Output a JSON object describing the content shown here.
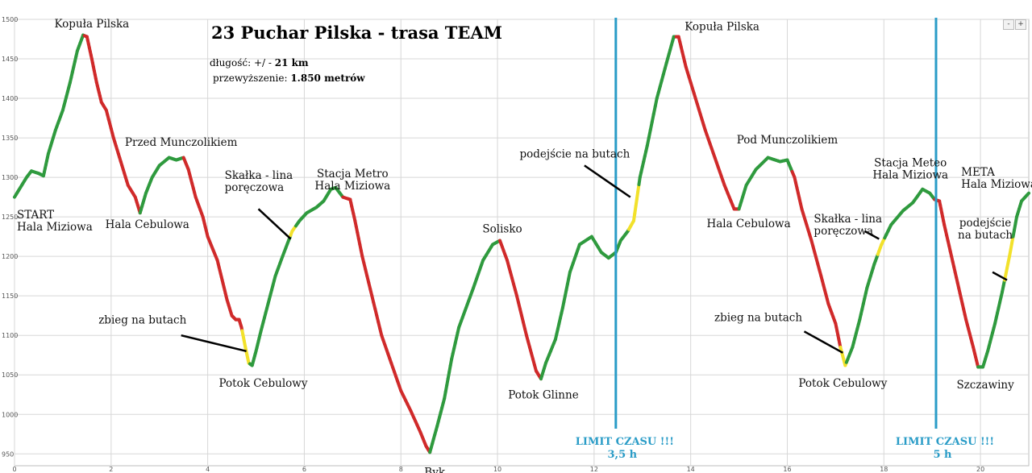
{
  "chart_data": {
    "type": "line",
    "title": "23 Puchar Pilska - trasa TEAM",
    "info": {
      "length_label": "długość: +/ - ",
      "length_value": "21 km",
      "elevation_label": "przewyższenie: ",
      "elevation_value": "1.850 metrów"
    },
    "xlim": [
      0,
      21
    ],
    "ylim": [
      935,
      1500
    ],
    "xticks": [
      0,
      2,
      4,
      6,
      8,
      10,
      12,
      14,
      16,
      18,
      20
    ],
    "yticks": [
      950,
      1000,
      1050,
      1100,
      1150,
      1200,
      1250,
      1300,
      1350,
      1400,
      1450,
      1500
    ],
    "grid": true,
    "colors": {
      "uphill": "#2f9a3e",
      "downhill": "#d02a2a",
      "on_foot": "#f2e12b",
      "limit_line": "#2a9cc7",
      "pointer": "#000000"
    },
    "profile": [
      [
        0.0,
        1275
      ],
      [
        0.1,
        1285
      ],
      [
        0.25,
        1300
      ],
      [
        0.35,
        1308
      ],
      [
        0.5,
        1305
      ],
      [
        0.6,
        1302
      ],
      [
        0.7,
        1330
      ],
      [
        0.85,
        1360
      ],
      [
        1.0,
        1385
      ],
      [
        1.15,
        1420
      ],
      [
        1.3,
        1460
      ],
      [
        1.42,
        1480
      ],
      [
        1.5,
        1478
      ],
      [
        1.6,
        1450
      ],
      [
        1.7,
        1420
      ],
      [
        1.8,
        1395
      ],
      [
        1.9,
        1385
      ],
      [
        2.05,
        1350
      ],
      [
        2.2,
        1320
      ],
      [
        2.35,
        1290
      ],
      [
        2.5,
        1275
      ],
      [
        2.6,
        1255
      ],
      [
        2.72,
        1280
      ],
      [
        2.85,
        1300
      ],
      [
        3.0,
        1315
      ],
      [
        3.2,
        1325
      ],
      [
        3.35,
        1322
      ],
      [
        3.5,
        1325
      ],
      [
        3.6,
        1310
      ],
      [
        3.75,
        1275
      ],
      [
        3.9,
        1250
      ],
      [
        4.0,
        1225
      ],
      [
        4.1,
        1210
      ],
      [
        4.2,
        1195
      ],
      [
        4.3,
        1170
      ],
      [
        4.4,
        1145
      ],
      [
        4.5,
        1125
      ],
      [
        4.58,
        1120
      ],
      [
        4.65,
        1120
      ],
      [
        4.7,
        1110
      ],
      [
        4.78,
        1085
      ],
      [
        4.85,
        1065
      ],
      [
        4.92,
        1062
      ],
      [
        5.0,
        1080
      ],
      [
        5.1,
        1105
      ],
      [
        5.25,
        1140
      ],
      [
        5.4,
        1175
      ],
      [
        5.55,
        1200
      ],
      [
        5.75,
        1232
      ],
      [
        5.9,
        1245
      ],
      [
        6.05,
        1255
      ],
      [
        6.25,
        1262
      ],
      [
        6.4,
        1270
      ],
      [
        6.55,
        1285
      ],
      [
        6.65,
        1287
      ],
      [
        6.8,
        1275
      ],
      [
        6.95,
        1272
      ],
      [
        7.05,
        1245
      ],
      [
        7.2,
        1200
      ],
      [
        7.4,
        1150
      ],
      [
        7.6,
        1100
      ],
      [
        7.8,
        1065
      ],
      [
        8.0,
        1030
      ],
      [
        8.2,
        1005
      ],
      [
        8.4,
        978
      ],
      [
        8.52,
        960
      ],
      [
        8.6,
        952
      ],
      [
        8.75,
        985
      ],
      [
        8.9,
        1020
      ],
      [
        9.05,
        1070
      ],
      [
        9.2,
        1110
      ],
      [
        9.35,
        1135
      ],
      [
        9.5,
        1160
      ],
      [
        9.7,
        1195
      ],
      [
        9.9,
        1215
      ],
      [
        10.05,
        1220
      ],
      [
        10.2,
        1195
      ],
      [
        10.4,
        1150
      ],
      [
        10.6,
        1100
      ],
      [
        10.8,
        1055
      ],
      [
        10.9,
        1045
      ],
      [
        11.0,
        1065
      ],
      [
        11.2,
        1095
      ],
      [
        11.35,
        1135
      ],
      [
        11.5,
        1180
      ],
      [
        11.7,
        1215
      ],
      [
        11.95,
        1225
      ],
      [
        12.15,
        1205
      ],
      [
        12.3,
        1198
      ],
      [
        12.45,
        1205
      ],
      [
        12.55,
        1220
      ],
      [
        12.7,
        1232
      ],
      [
        12.82,
        1245
      ],
      [
        12.95,
        1300
      ],
      [
        13.1,
        1340
      ],
      [
        13.3,
        1400
      ],
      [
        13.5,
        1445
      ],
      [
        13.65,
        1478
      ],
      [
        13.75,
        1478
      ],
      [
        13.9,
        1440
      ],
      [
        14.1,
        1400
      ],
      [
        14.3,
        1360
      ],
      [
        14.5,
        1325
      ],
      [
        14.7,
        1290
      ],
      [
        14.9,
        1260
      ],
      [
        15.0,
        1260
      ],
      [
        15.15,
        1290
      ],
      [
        15.35,
        1310
      ],
      [
        15.6,
        1325
      ],
      [
        15.85,
        1320
      ],
      [
        16.0,
        1322
      ],
      [
        16.15,
        1300
      ],
      [
        16.3,
        1260
      ],
      [
        16.5,
        1220
      ],
      [
        16.7,
        1175
      ],
      [
        16.85,
        1140
      ],
      [
        17.0,
        1115
      ],
      [
        17.1,
        1085
      ],
      [
        17.2,
        1062
      ],
      [
        17.35,
        1085
      ],
      [
        17.5,
        1120
      ],
      [
        17.65,
        1160
      ],
      [
        17.8,
        1190
      ],
      [
        17.95,
        1215
      ],
      [
        18.15,
        1240
      ],
      [
        18.4,
        1258
      ],
      [
        18.6,
        1268
      ],
      [
        18.8,
        1285
      ],
      [
        18.95,
        1280
      ],
      [
        19.05,
        1272
      ],
      [
        19.15,
        1270
      ],
      [
        19.25,
        1240
      ],
      [
        19.4,
        1200
      ],
      [
        19.55,
        1160
      ],
      [
        19.7,
        1120
      ],
      [
        19.85,
        1085
      ],
      [
        19.95,
        1060
      ],
      [
        20.05,
        1060
      ],
      [
        20.15,
        1080
      ],
      [
        20.3,
        1115
      ],
      [
        20.45,
        1155
      ],
      [
        20.6,
        1200
      ],
      [
        20.75,
        1250
      ],
      [
        20.85,
        1270
      ],
      [
        21.0,
        1280
      ]
    ],
    "red_ranges": [
      [
        1.45,
        2.6
      ],
      [
        3.5,
        4.75
      ],
      [
        6.8,
        8.6
      ],
      [
        10.05,
        10.9
      ],
      [
        13.7,
        15.0
      ],
      [
        16.1,
        17.1
      ],
      [
        19.05,
        19.95
      ]
    ],
    "yellow_ranges": [
      [
        4.72,
        4.87
      ],
      [
        5.72,
        5.82
      ],
      [
        12.73,
        12.93
      ],
      [
        17.1,
        17.22
      ],
      [
        17.88,
        18.0
      ],
      [
        20.5,
        20.68
      ]
    ],
    "limit_lines": [
      {
        "x": 12.45,
        "label1": "LIMIT CZASU !!!",
        "label2": "3,5 h"
      },
      {
        "x": 19.08,
        "label1": "LIMIT CZASU !!!",
        "label2": "5 h"
      }
    ],
    "annotations": [
      {
        "name": "label-kopula-1",
        "lines": [
          "Kopuła  Pilska"
        ],
        "x": 1.6,
        "y": 1490,
        "anchor": "middle"
      },
      {
        "name": "label-start",
        "lines": [
          "START",
          "Hala Miziowa"
        ],
        "x": 0.05,
        "y": 1248,
        "anchor": "start"
      },
      {
        "name": "label-hala-cebulowa-1",
        "lines": [
          "Hala Cebulowa"
        ],
        "x": 2.75,
        "y": 1236,
        "anchor": "middle"
      },
      {
        "name": "label-przed-munczolikiem",
        "lines": [
          "Przed Munczolikiem"
        ],
        "x": 3.45,
        "y": 1340,
        "anchor": "middle"
      },
      {
        "name": "label-skalka-1",
        "lines": [
          "Skałka - lina",
          "poręczowa"
        ],
        "x": 4.35,
        "y": 1298,
        "anchor": "start"
      },
      {
        "name": "label-stacja-metro",
        "lines": [
          "Stacja Metro",
          "Hala Miziowa"
        ],
        "x": 7.0,
        "y": 1300,
        "anchor": "middle"
      },
      {
        "name": "label-zbieg-1",
        "lines": [
          "zbieg na butach"
        ],
        "x": 2.65,
        "y": 1115,
        "anchor": "middle"
      },
      {
        "name": "label-potok-cebulowy-1",
        "lines": [
          "Potok Cebulowy"
        ],
        "x": 5.15,
        "y": 1035,
        "anchor": "middle"
      },
      {
        "name": "label-byk",
        "lines": [
          "Byk"
        ],
        "x": 8.7,
        "y": 922,
        "anchor": "middle"
      },
      {
        "name": "label-solisko",
        "lines": [
          "Solisko"
        ],
        "x": 10.1,
        "y": 1230,
        "anchor": "middle"
      },
      {
        "name": "label-potok-glinne",
        "lines": [
          "Potok Glinne"
        ],
        "x": 10.95,
        "y": 1020,
        "anchor": "middle"
      },
      {
        "name": "label-podejscie-1",
        "lines": [
          "podejście na butach"
        ],
        "x": 11.6,
        "y": 1325,
        "anchor": "middle"
      },
      {
        "name": "label-kopula-2",
        "lines": [
          "Kopuła Pilska"
        ],
        "x": 14.65,
        "y": 1486,
        "anchor": "middle"
      },
      {
        "name": "label-pod-munczolikiem",
        "lines": [
          "Pod Munczolikiem"
        ],
        "x": 16.0,
        "y": 1343,
        "anchor": "middle"
      },
      {
        "name": "label-hala-cebulowa-2",
        "lines": [
          "Hala Cebulowa"
        ],
        "x": 15.2,
        "y": 1237,
        "anchor": "middle"
      },
      {
        "name": "label-stacja-meteo",
        "lines": [
          "Stacja Meteo",
          "Hala Miziowa"
        ],
        "x": 18.55,
        "y": 1314,
        "anchor": "middle"
      },
      {
        "name": "label-skalka-2",
        "lines": [
          "Skałka - lina",
          "poręczowa"
        ],
        "x": 16.55,
        "y": 1243,
        "anchor": "start"
      },
      {
        "name": "label-meta",
        "lines": [
          "META",
          "Hala Miziowa"
        ],
        "x": 19.6,
        "y": 1302,
        "anchor": "start"
      },
      {
        "name": "label-podejscie-2",
        "lines": [
          "podejście",
          "na butach"
        ],
        "x": 20.1,
        "y": 1238,
        "anchor": "middle"
      },
      {
        "name": "label-zbieg-2",
        "lines": [
          "zbieg na butach"
        ],
        "x": 15.4,
        "y": 1118,
        "anchor": "middle"
      },
      {
        "name": "label-potok-cebulowy-2",
        "lines": [
          "Potok Cebulowy"
        ],
        "x": 17.15,
        "y": 1035,
        "anchor": "middle"
      },
      {
        "name": "label-szczawiny",
        "lines": [
          "Szczawiny"
        ],
        "x": 20.1,
        "y": 1033,
        "anchor": "middle"
      }
    ],
    "pointers": [
      {
        "name": "pointer-zbieg-1",
        "from": [
          3.45,
          1100
        ],
        "to": [
          4.8,
          1080
        ]
      },
      {
        "name": "pointer-skalka-1",
        "from": [
          5.05,
          1260
        ],
        "to": [
          5.72,
          1222
        ]
      },
      {
        "name": "pointer-podejscie-1",
        "from": [
          11.8,
          1315
        ],
        "to": [
          12.75,
          1275
        ]
      },
      {
        "name": "pointer-zbieg-2",
        "from": [
          16.35,
          1105
        ],
        "to": [
          17.15,
          1078
        ]
      },
      {
        "name": "pointer-skalka-2",
        "from": [
          17.6,
          1232
        ],
        "to": [
          17.9,
          1222
        ]
      },
      {
        "name": "pointer-podejscie-2",
        "from": [
          20.25,
          1180
        ],
        "to": [
          20.55,
          1170
        ]
      }
    ]
  },
  "zoom": {
    "minus": "-",
    "plus": "+"
  }
}
